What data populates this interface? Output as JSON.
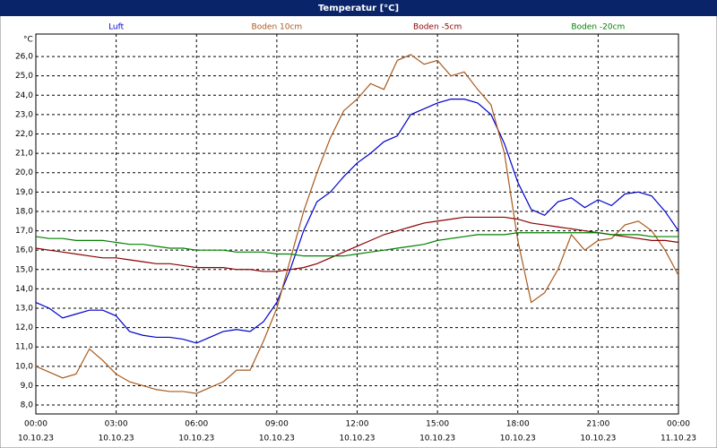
{
  "chart_data": {
    "type": "line",
    "title": "Temperatur [°C]",
    "y_unit_label": "°C",
    "x": [
      0,
      0.5,
      1,
      1.5,
      2,
      2.5,
      3,
      3.5,
      4,
      4.5,
      5,
      5.5,
      6,
      6.5,
      7,
      7.5,
      8,
      8.5,
      9,
      9.5,
      10,
      10.5,
      11,
      11.5,
      12,
      12.5,
      13,
      13.5,
      14,
      14.5,
      15,
      15.5,
      16,
      16.5,
      17,
      17.5,
      18,
      18.5,
      19,
      19.5,
      20,
      20.5,
      21,
      21.5,
      22,
      22.5,
      23,
      23.5,
      24
    ],
    "series": [
      {
        "name": "Luft",
        "color": "#0000cc",
        "values": [
          13.3,
          13.0,
          12.5,
          12.7,
          12.9,
          12.9,
          12.6,
          11.8,
          11.6,
          11.5,
          11.5,
          11.4,
          11.2,
          11.5,
          11.8,
          11.9,
          11.8,
          12.3,
          13.3,
          15.0,
          17.0,
          18.5,
          19.0,
          19.8,
          20.5,
          21.0,
          21.6,
          21.9,
          23.0,
          23.3,
          23.6,
          23.8,
          23.8,
          23.6,
          23.0,
          21.5,
          19.5,
          18.1,
          17.8,
          18.5,
          18.7,
          18.2,
          18.6,
          18.3,
          18.9,
          19.0,
          18.8,
          18.0,
          17.0
        ]
      },
      {
        "name": "Boden 10cm",
        "color": "#a85a1e",
        "values": [
          10.0,
          9.7,
          9.4,
          9.6,
          10.9,
          10.3,
          9.6,
          9.2,
          9.0,
          8.8,
          8.7,
          8.7,
          8.6,
          8.9,
          9.2,
          9.8,
          9.8,
          11.3,
          13.0,
          15.5,
          18.0,
          20.0,
          21.8,
          23.2,
          23.8,
          24.6,
          24.3,
          25.8,
          26.1,
          25.6,
          25.8,
          25.0,
          25.2,
          24.3,
          23.5,
          21.0,
          16.5,
          13.3,
          13.8,
          15.0,
          16.8,
          16.0,
          16.5,
          16.6,
          17.3,
          17.5,
          17.0,
          16.0,
          14.7
        ]
      },
      {
        "name": "Boden -5cm",
        "color": "#8b0000",
        "values": [
          16.1,
          16.0,
          15.9,
          15.8,
          15.7,
          15.6,
          15.6,
          15.5,
          15.4,
          15.3,
          15.3,
          15.2,
          15.1,
          15.1,
          15.1,
          15.0,
          15.0,
          14.9,
          14.9,
          15.0,
          15.1,
          15.3,
          15.6,
          15.9,
          16.2,
          16.5,
          16.8,
          17.0,
          17.2,
          17.4,
          17.5,
          17.6,
          17.7,
          17.7,
          17.7,
          17.7,
          17.6,
          17.4,
          17.3,
          17.2,
          17.1,
          17.0,
          16.9,
          16.8,
          16.7,
          16.6,
          16.5,
          16.5,
          16.4
        ]
      },
      {
        "name": "Boden -20cm",
        "color": "#008000",
        "values": [
          16.7,
          16.6,
          16.6,
          16.5,
          16.5,
          16.5,
          16.4,
          16.3,
          16.3,
          16.2,
          16.1,
          16.1,
          16.0,
          16.0,
          16.0,
          15.9,
          15.9,
          15.9,
          15.8,
          15.8,
          15.7,
          15.7,
          15.7,
          15.7,
          15.8,
          15.9,
          16.0,
          16.1,
          16.2,
          16.3,
          16.5,
          16.6,
          16.7,
          16.8,
          16.8,
          16.8,
          16.9,
          16.9,
          16.9,
          16.9,
          16.9,
          16.9,
          16.9,
          16.8,
          16.8,
          16.8,
          16.7,
          16.7,
          16.7
        ]
      }
    ],
    "xlim": [
      0,
      24
    ],
    "xticks": [
      {
        "value": 0,
        "label": "00:00"
      },
      {
        "value": 3,
        "label": "03:00"
      },
      {
        "value": 6,
        "label": "06:00"
      },
      {
        "value": 9,
        "label": "09:00"
      },
      {
        "value": 12,
        "label": "12:00"
      },
      {
        "value": 15,
        "label": "15:00"
      },
      {
        "value": 18,
        "label": "18:00"
      },
      {
        "value": 21,
        "label": "21:00"
      },
      {
        "value": 24,
        "label": "00:00"
      }
    ],
    "xtick_dates": [
      "10.10.23",
      "10.10.23",
      "10.10.23",
      "10.10.23",
      "10.10.23",
      "10.10.23",
      "10.10.23",
      "10.10.23",
      "11.10.23"
    ],
    "ylim": [
      7.54,
      27.16
    ],
    "yticks": [
      {
        "value": 8,
        "label": "8,0"
      },
      {
        "value": 9,
        "label": "9,0"
      },
      {
        "value": 10,
        "label": "10,0"
      },
      {
        "value": 11,
        "label": "11,0"
      },
      {
        "value": 12,
        "label": "12,0"
      },
      {
        "value": 13,
        "label": "13,0"
      },
      {
        "value": 14,
        "label": "14,0"
      },
      {
        "value": 15,
        "label": "15,0"
      },
      {
        "value": 16,
        "label": "16,0"
      },
      {
        "value": 17,
        "label": "17,0"
      },
      {
        "value": 18,
        "label": "18,0"
      },
      {
        "value": 19,
        "label": "19,0"
      },
      {
        "value": 20,
        "label": "20,0"
      },
      {
        "value": 21,
        "label": "21,0"
      },
      {
        "value": 22,
        "label": "22,0"
      },
      {
        "value": 23,
        "label": "23,0"
      },
      {
        "value": 24,
        "label": "24,0"
      },
      {
        "value": 25,
        "label": "25,0"
      },
      {
        "value": 26,
        "label": "26,0"
      }
    ],
    "grid": true
  }
}
